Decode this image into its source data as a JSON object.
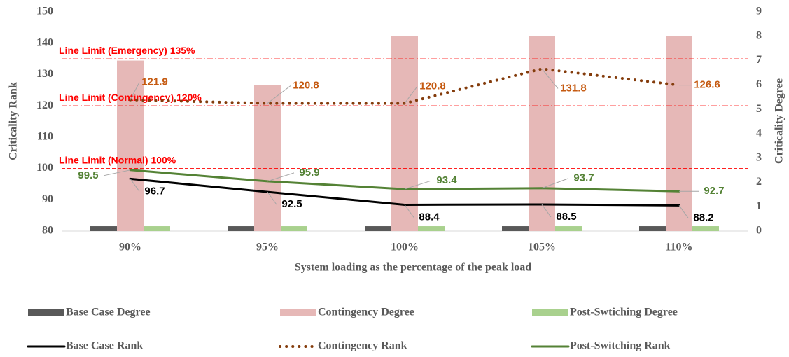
{
  "chart_data": {
    "type": "combo",
    "xlabel": "System loading as the percentage of the peak load",
    "ylabel": "Criticality Rank",
    "y2label": "Criticality Degree",
    "categories": [
      "90%",
      "95%",
      "100%",
      "105%",
      "110%"
    ],
    "ylim": [
      80,
      150
    ],
    "yticks": [
      80,
      90,
      100,
      110,
      120,
      130,
      140,
      150
    ],
    "y2lim": [
      0,
      9
    ],
    "y2ticks": [
      0,
      1,
      2,
      3,
      4,
      5,
      6,
      7,
      8,
      9
    ],
    "reference_lines": [
      {
        "label": "Line Limit (Emergency) 135%",
        "value": 135,
        "style": "dashdot"
      },
      {
        "label": "Line Limit (Contingency) 120%",
        "value": 120,
        "style": "dashdot"
      },
      {
        "label": "Line Limit (Normal) 100%",
        "value": 100,
        "style": "dashed"
      }
    ],
    "series": [
      {
        "name": "Base Case Degree",
        "type": "bar",
        "axis": "y2",
        "color": "#595959",
        "values": [
          0.2,
          0.2,
          0.2,
          0.2,
          0.2
        ]
      },
      {
        "name": "Contingency Degree",
        "type": "bar",
        "axis": "y2",
        "color": "#e6b8b7",
        "values": [
          7,
          6,
          8,
          8,
          8
        ]
      },
      {
        "name": "Post-Swtiching Degree",
        "type": "bar",
        "axis": "y2",
        "color": "#a9d18e",
        "values": [
          0.2,
          0.2,
          0.2,
          0.2,
          0.2
        ]
      },
      {
        "name": "Base Case Rank",
        "type": "line",
        "color": "#000000",
        "line_style": "solid",
        "values": [
          96.7,
          92.5,
          88.4,
          88.5,
          88.2
        ]
      },
      {
        "name": "Contingency Rank",
        "type": "line",
        "color": "#843c0c",
        "label_color": "#c55a11",
        "line_style": "dotted",
        "values": [
          121.9,
          120.8,
          120.8,
          131.8,
          126.6
        ]
      },
      {
        "name": "Post-Switching Rank",
        "type": "line",
        "color": "#548235",
        "line_style": "solid",
        "values": [
          99.5,
          95.9,
          93.4,
          93.7,
          92.7
        ]
      }
    ]
  }
}
